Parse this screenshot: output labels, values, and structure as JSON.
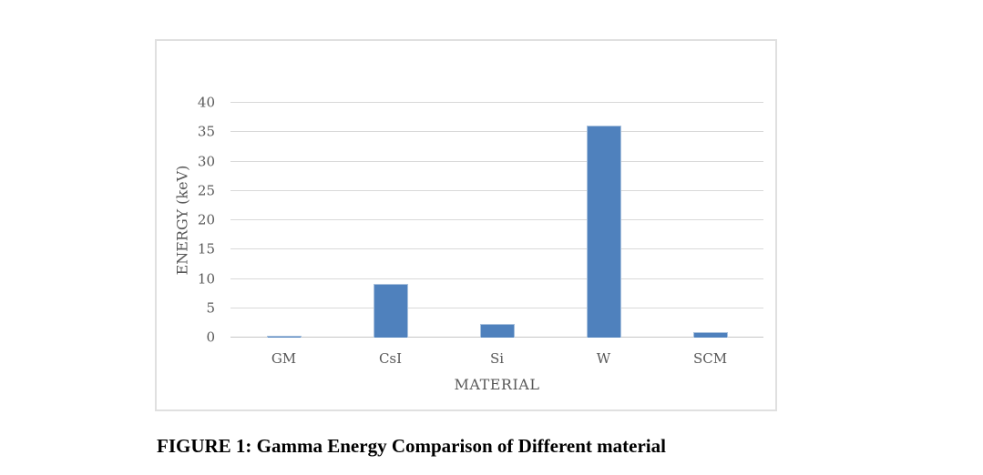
{
  "page": {
    "background": "#ffffff"
  },
  "figure": {
    "caption": "FIGURE 1: Gamma Energy Comparison of Different material"
  },
  "chart_data": {
    "type": "bar",
    "title": "",
    "categories": [
      "GM",
      "CsI",
      "Si",
      "W",
      "SCM"
    ],
    "values": [
      0.3,
      9.1,
      2.3,
      36.2,
      1.0
    ],
    "xlabel": "MATERIAL",
    "ylabel": "ENERGY (keV)",
    "ylim": [
      0,
      40
    ],
    "yticks": [
      0,
      5,
      10,
      15,
      20,
      25,
      30,
      35,
      40
    ],
    "grid": "horizontal-gridlines",
    "legend": "none",
    "colors": {
      "bar_fill": "#4F81BD",
      "bar_border": "#A8C1DD",
      "gridline": "#D9D9D9",
      "axis_line": "#C6C6C6",
      "text": "#595959",
      "frame_border": "#E0E0E0"
    }
  }
}
